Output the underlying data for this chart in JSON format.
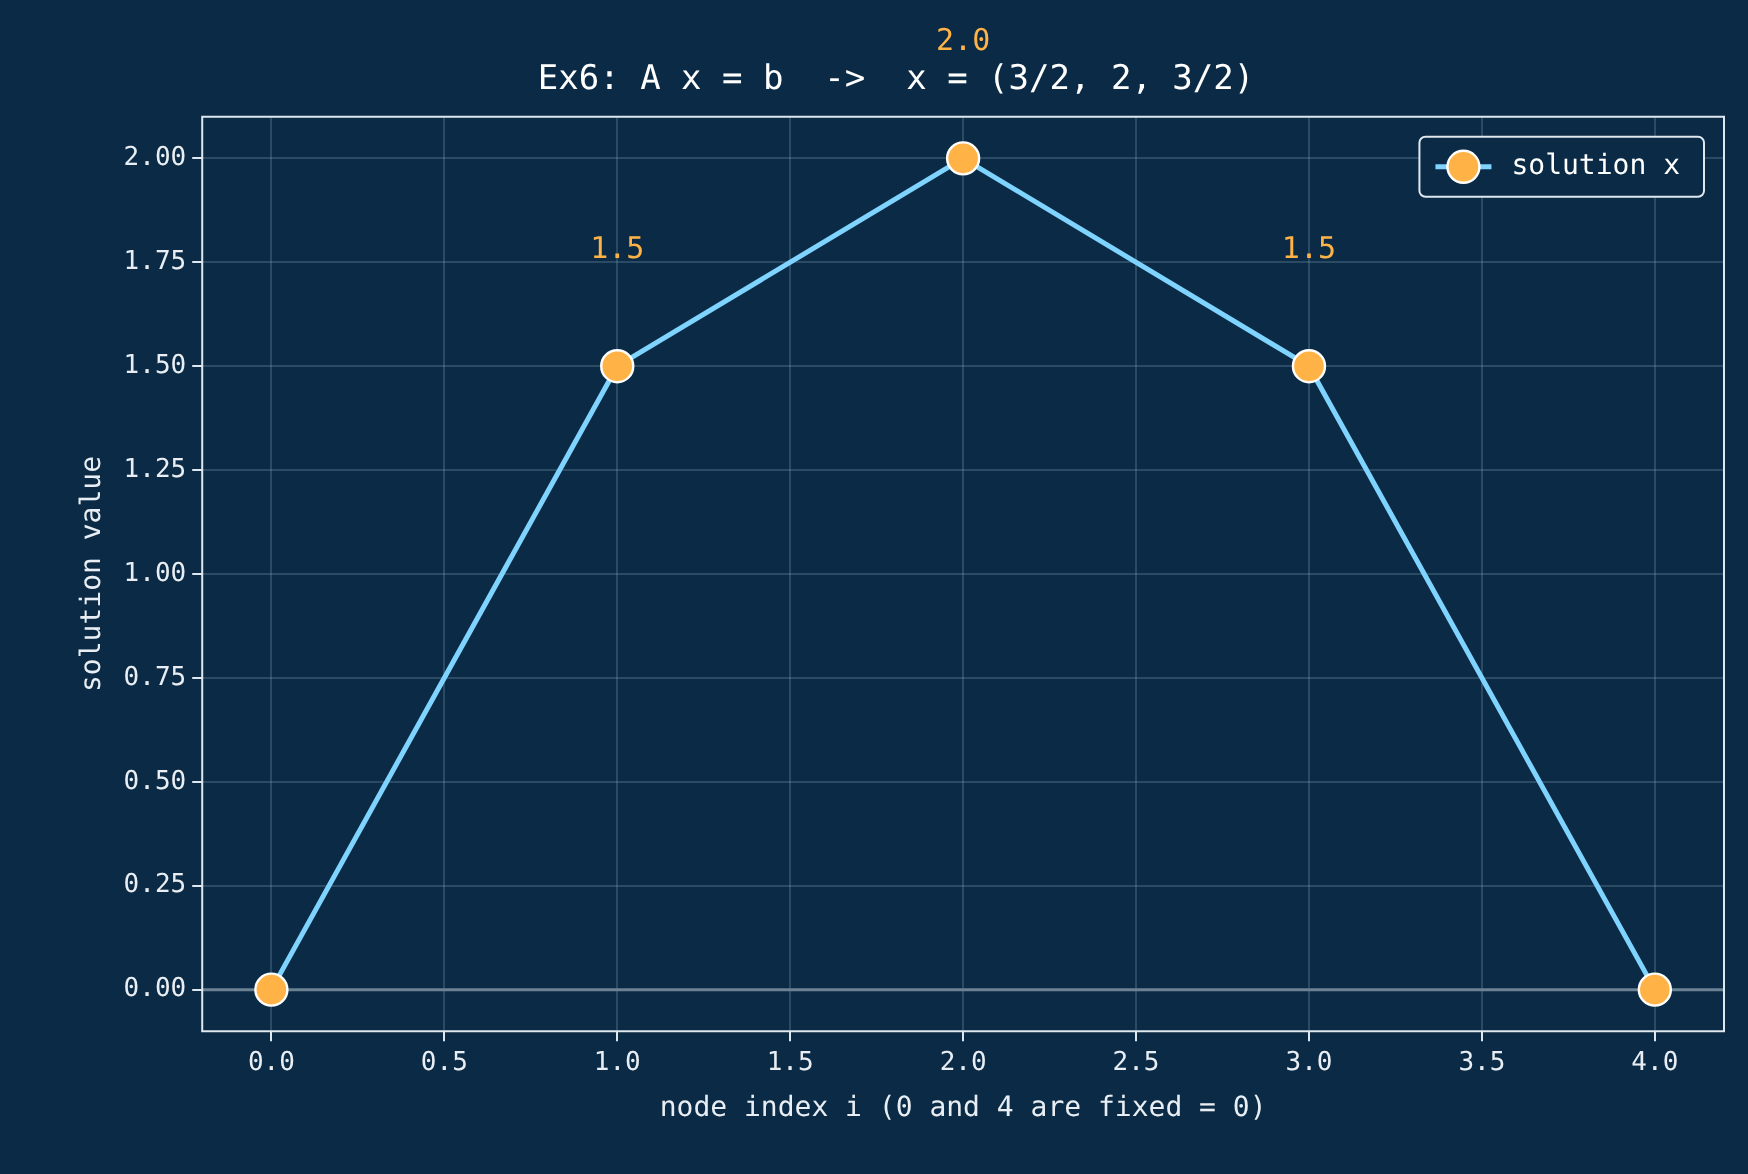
{
  "chart_data": {
    "type": "line",
    "title": "Ex6: A x = b  ->  x = (3/2, 2, 3/2)",
    "xlabel": "node index i (0 and 4 are fixed = 0)",
    "ylabel": "solution value",
    "x": [
      0,
      1,
      2,
      3,
      4
    ],
    "series": [
      {
        "name": "solution x",
        "color": "#7fd4ff",
        "colors": [
          "#ffb347",
          "#ffb347",
          "#ffb347",
          "#ffb347",
          "#ffb347"
        ],
        "values": [
          0,
          1.5,
          2,
          1.5,
          0
        ],
        "value_labels": [
          null,
          "1.5",
          "2.0",
          "1.5",
          null
        ]
      }
    ],
    "xlim": [
      -0.2,
      4.2
    ],
    "xticks": [
      {
        "value": 0,
        "label": "0.0"
      },
      {
        "value": 0.5,
        "label": "0.5"
      },
      {
        "value": 1,
        "label": "1.0"
      },
      {
        "value": 1.5,
        "label": "1.5"
      },
      {
        "value": 2,
        "label": "2.0"
      },
      {
        "value": 2.5,
        "label": "2.5"
      },
      {
        "value": 3,
        "label": "3.0"
      },
      {
        "value": 3.5,
        "label": "3.5"
      },
      {
        "value": 4,
        "label": "4.0"
      }
    ],
    "ylim": [
      -0.1,
      2.1
    ],
    "yticks": [
      {
        "value": 0,
        "label": "0.00"
      },
      {
        "value": 0.25,
        "label": "0.25"
      },
      {
        "value": 0.5,
        "label": "0.50"
      },
      {
        "value": 0.75,
        "label": "0.75"
      },
      {
        "value": 1,
        "label": "1.00"
      },
      {
        "value": 1.25,
        "label": "1.25"
      },
      {
        "value": 1.5,
        "label": "1.50"
      },
      {
        "value": 1.75,
        "label": "1.75"
      },
      {
        "value": 2,
        "label": "2.00"
      }
    ],
    "ref_lines": [
      {
        "axis": "y",
        "value": 0,
        "color": "#6b8294"
      }
    ],
    "grid": true,
    "legend": "top right",
    "marker": "circle",
    "line_style": "solid"
  }
}
